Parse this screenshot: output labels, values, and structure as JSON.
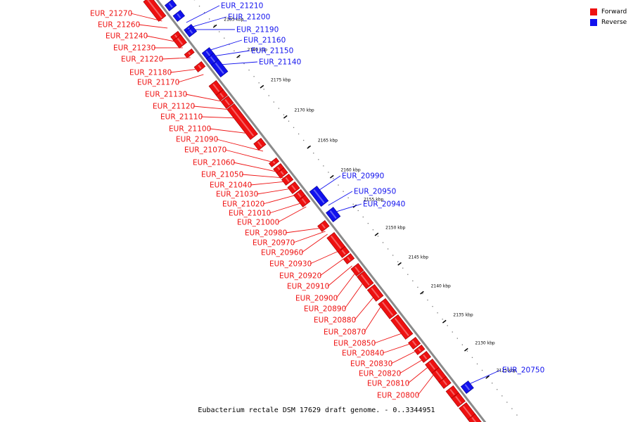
{
  "title": "Eubacterium rectale DSM 17629 draft genome. - 0..3344951",
  "colors": {
    "forward": "#ee1111",
    "reverse": "#1111ee",
    "backbone": "#8a8a8a"
  },
  "legend": [
    {
      "label": "Forward",
      "color": "#ee1111"
    },
    {
      "label": "Reverse",
      "color": "#1111ee"
    }
  ],
  "ticks": [
    "2190 kbp",
    "2185 kbp",
    "2180 kbp",
    "2175 kbp",
    "2170 kbp",
    "2165 kbp",
    "2160 kbp",
    "2155 kbp",
    "2150 kbp",
    "2145 kbp",
    "2140 kbp",
    "2135 kbp",
    "2130 kbp",
    "2125 kbp"
  ],
  "genes": [
    {
      "name": "EUR_21270",
      "strand": "forward"
    },
    {
      "name": "EUR_21260",
      "strand": "forward"
    },
    {
      "name": "EUR_21240",
      "strand": "forward"
    },
    {
      "name": "EUR_21230",
      "strand": "forward"
    },
    {
      "name": "EUR_21220",
      "strand": "forward"
    },
    {
      "name": "EUR_21180",
      "strand": "forward"
    },
    {
      "name": "EUR_21170",
      "strand": "forward"
    },
    {
      "name": "EUR_21130",
      "strand": "forward"
    },
    {
      "name": "EUR_21120",
      "strand": "forward"
    },
    {
      "name": "EUR_21110",
      "strand": "forward"
    },
    {
      "name": "EUR_21100",
      "strand": "forward"
    },
    {
      "name": "EUR_21090",
      "strand": "forward"
    },
    {
      "name": "EUR_21070",
      "strand": "forward"
    },
    {
      "name": "EUR_21060",
      "strand": "forward"
    },
    {
      "name": "EUR_21050",
      "strand": "forward"
    },
    {
      "name": "EUR_21040",
      "strand": "forward"
    },
    {
      "name": "EUR_21030",
      "strand": "forward"
    },
    {
      "name": "EUR_21020",
      "strand": "forward"
    },
    {
      "name": "EUR_21010",
      "strand": "forward"
    },
    {
      "name": "EUR_21000",
      "strand": "forward"
    },
    {
      "name": "EUR_20980",
      "strand": "forward"
    },
    {
      "name": "EUR_20970",
      "strand": "forward"
    },
    {
      "name": "EUR_20960",
      "strand": "forward"
    },
    {
      "name": "EUR_20930",
      "strand": "forward"
    },
    {
      "name": "EUR_20920",
      "strand": "forward"
    },
    {
      "name": "EUR_20910",
      "strand": "forward"
    },
    {
      "name": "EUR_20900",
      "strand": "forward"
    },
    {
      "name": "EUR_20890",
      "strand": "forward"
    },
    {
      "name": "EUR_20880",
      "strand": "forward"
    },
    {
      "name": "EUR_20870",
      "strand": "forward"
    },
    {
      "name": "EUR_20850",
      "strand": "forward"
    },
    {
      "name": "EUR_20840",
      "strand": "forward"
    },
    {
      "name": "EUR_20830",
      "strand": "forward"
    },
    {
      "name": "EUR_20820",
      "strand": "forward"
    },
    {
      "name": "EUR_20810",
      "strand": "forward"
    },
    {
      "name": "EUR_20800",
      "strand": "forward"
    },
    {
      "name": "EUR_21210",
      "strand": "reverse"
    },
    {
      "name": "EUR_21200",
      "strand": "reverse"
    },
    {
      "name": "EUR_21190",
      "strand": "reverse"
    },
    {
      "name": "EUR_21160",
      "strand": "reverse"
    },
    {
      "name": "EUR_21150",
      "strand": "reverse"
    },
    {
      "name": "EUR_21140",
      "strand": "reverse"
    },
    {
      "name": "EUR_20990",
      "strand": "reverse"
    },
    {
      "name": "EUR_20950",
      "strand": "reverse"
    },
    {
      "name": "EUR_20940",
      "strand": "reverse"
    },
    {
      "name": "EUR_20750",
      "strand": "reverse"
    }
  ]
}
